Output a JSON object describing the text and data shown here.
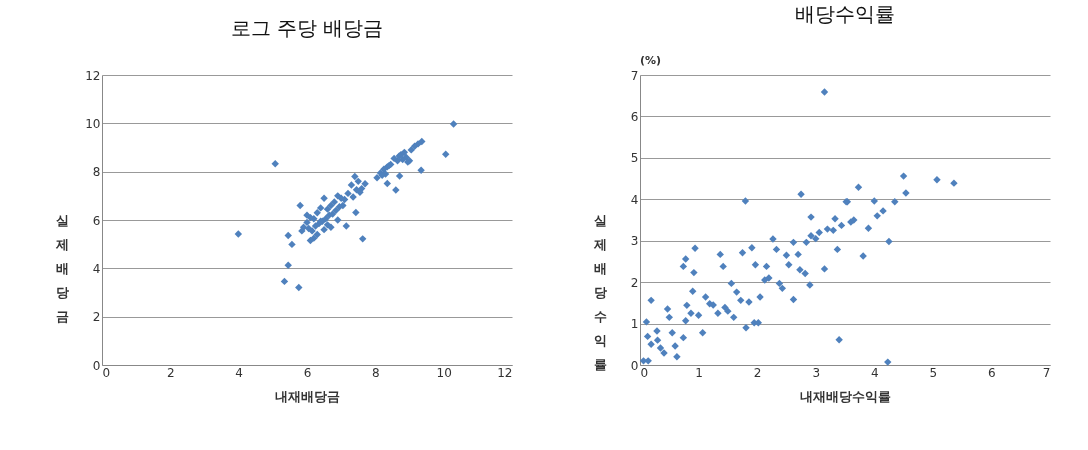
{
  "chart_data": [
    {
      "type": "scatter",
      "title": "로그 주당 배당금",
      "xlabel": "내재배당금",
      "ylabel": "실제배당금",
      "marker": "diamond",
      "grid": "y",
      "xlim": [
        0,
        12
      ],
      "ylim": [
        0,
        12
      ],
      "xticks": [
        0,
        2,
        4,
        6,
        8,
        10,
        12
      ],
      "yticks": [
        0,
        2,
        4,
        6,
        8,
        10,
        12
      ],
      "series": [
        {
          "color": "#4f81bd",
          "x": [
            10.29,
            10.06,
            9.34,
            5.07,
            3.99,
            5.45,
            5.56,
            5.45,
            5.34,
            5.76,
            5.8,
            7.63,
            7.43,
            8.6,
            8.71,
            8.35,
            9.36,
            9.25,
            9.15,
            9.05,
            8.9,
            8.8,
            8.75,
            8.65,
            8.55,
            8.45,
            8.35,
            8.25,
            8.15,
            8.05,
            8.95,
            8.85,
            8.7,
            8.4,
            8.3,
            8.2,
            9.0,
            7.7,
            7.6,
            7.5,
            7.4,
            7.3,
            7.2,
            7.55,
            7.45,
            7.35,
            7.1,
            7.0,
            6.9,
            6.8,
            6.7,
            6.6,
            6.5,
            6.4,
            6.3,
            6.2,
            6.1,
            6.0,
            5.9,
            7.05,
            6.95,
            6.85,
            6.75,
            6.65,
            6.55,
            6.45,
            6.35,
            6.25,
            6.15,
            6.05,
            6.3,
            6.2,
            6.1,
            6.6,
            6.7,
            6.9,
            7.15,
            6.5,
            6.4,
            6.0,
            5.85
          ],
          "values": [
            9.97,
            8.72,
            8.06,
            8.33,
            5.42,
            5.36,
            4.99,
            4.13,
            3.46,
            3.21,
            6.6,
            5.22,
            6.31,
            7.24,
            7.82,
            7.51,
            9.25,
            9.15,
            9.05,
            8.9,
            8.6,
            8.5,
            8.7,
            8.45,
            8.55,
            8.3,
            8.2,
            8.1,
            7.95,
            7.75,
            8.4,
            8.8,
            8.65,
            8.25,
            7.9,
            7.85,
            8.45,
            7.5,
            7.3,
            7.6,
            7.8,
            7.45,
            7.1,
            7.15,
            7.25,
            6.95,
            6.85,
            6.9,
            7.0,
            6.75,
            6.6,
            6.45,
            6.9,
            6.5,
            6.3,
            6.05,
            6.1,
            5.9,
            5.7,
            6.6,
            6.55,
            6.4,
            6.25,
            6.2,
            6.05,
            5.95,
            5.85,
            5.75,
            5.55,
            5.65,
            5.4,
            5.25,
            5.15,
            5.8,
            5.7,
            6.0,
            5.75,
            5.6,
            5.95,
            6.2,
            5.55
          ]
        }
      ]
    },
    {
      "type": "scatter",
      "title": "배당수익률",
      "xlabel": "내재배당수익률",
      "ylabel": "실제배당수익률",
      "annotations": [
        "(%)"
      ],
      "marker": "diamond",
      "grid": "y",
      "xlim": [
        0,
        7
      ],
      "ylim": [
        0,
        7
      ],
      "xticks": [
        0,
        1,
        2,
        3,
        4,
        5,
        6,
        7
      ],
      "yticks": [
        0,
        1,
        2,
        3,
        4,
        5,
        6,
        7
      ],
      "series": [
        {
          "color": "#4f81bd",
          "x": [
            3.15,
            1.8,
            2.75,
            3.4,
            4.23,
            4.5,
            5.07,
            5.36,
            3.73,
            4.54,
            4.35,
            4.0,
            4.15,
            4.25,
            3.81,
            3.37,
            3.15,
            3.54,
            0.06,
            0.14,
            0.19,
            0.11,
            0.13,
            0.19,
            0.29,
            0.35,
            0.41,
            0.63,
            0.47,
            0.5,
            0.55,
            0.6,
            0.74,
            0.78,
            0.92,
            0.94,
            0.9,
            0.8,
            0.78,
            0.74,
            0.87,
            1.12,
            1.07,
            1.19,
            1.37,
            1.42,
            1.33,
            1.45,
            1.56,
            1.65,
            1.72,
            1.81,
            1.95,
            2.02,
            1.75,
            1.91,
            1.97,
            2.16,
            2.13,
            2.05,
            1.86,
            2.27,
            2.33,
            2.43,
            2.38,
            2.54,
            2.62,
            2.73,
            2.82,
            2.9,
            2.62,
            2.7,
            2.84,
            2.92,
            2.92,
            3.06,
            3.2,
            3.33,
            3.44,
            3.52,
            3.6,
            3.9,
            4.05,
            3.3,
            3.65,
            1.0,
            1.25,
            1.5,
            2.2,
            2.5,
            3.0,
            0.3,
            1.6
          ],
          "values": [
            6.59,
            3.96,
            4.12,
            0.61,
            0.07,
            4.56,
            4.47,
            4.39,
            4.29,
            4.15,
            3.94,
            3.96,
            3.72,
            2.98,
            2.63,
            2.79,
            2.32,
            3.94,
            0.1,
            0.1,
            1.56,
            1.04,
            0.69,
            0.5,
            0.82,
            0.41,
            0.29,
            0.2,
            1.35,
            1.15,
            0.78,
            0.46,
            2.38,
            2.56,
            2.23,
            2.82,
            1.78,
            1.44,
            1.07,
            0.66,
            1.25,
            1.64,
            0.78,
            1.48,
            2.67,
            2.38,
            1.25,
            1.39,
            1.97,
            1.76,
            1.56,
            0.9,
            1.02,
            1.02,
            2.71,
            2.83,
            2.42,
            2.38,
            2.05,
            1.64,
            1.52,
            3.04,
            2.79,
            1.85,
            1.97,
            2.42,
            1.58,
            2.3,
            2.21,
            1.93,
            2.96,
            2.67,
            2.96,
            3.12,
            3.57,
            3.2,
            3.28,
            3.53,
            3.37,
            3.94,
            3.45,
            3.3,
            3.6,
            3.25,
            3.5,
            1.2,
            1.45,
            1.3,
            2.1,
            2.65,
            3.05,
            0.6,
            1.15
          ]
        }
      ]
    }
  ]
}
